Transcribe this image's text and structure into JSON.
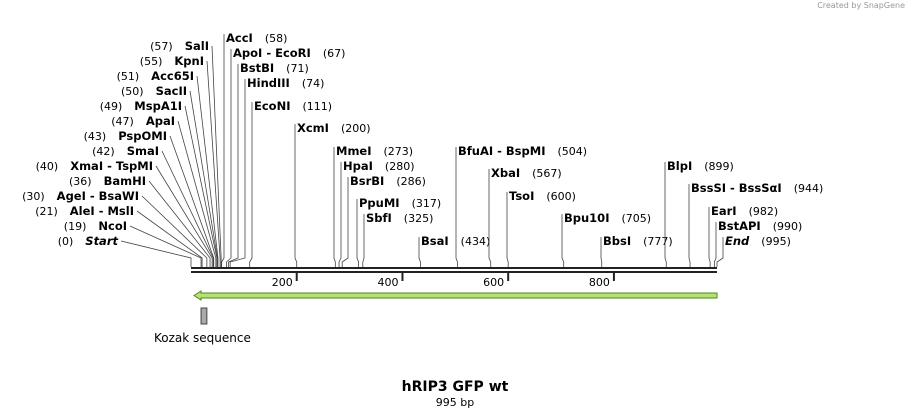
{
  "credit": "Created by SnapGene",
  "title": "hRIP3 GFP wt",
  "length_label": "995 bp",
  "length": 995,
  "ruler": [
    200,
    400,
    600,
    800
  ],
  "feature": {
    "label": "Kozak sequence",
    "start": 19,
    "end": 30
  },
  "sites": [
    {
      "name": "Start",
      "position": 0,
      "position_label": "(0)"
    },
    {
      "name": "NcoI",
      "position": 19,
      "position_label": "(19)"
    },
    {
      "name": "AleI - MslI",
      "position": 21,
      "position_label": "(21)"
    },
    {
      "name": "AgeI - BsaWI",
      "position": 30,
      "position_label": "(30)"
    },
    {
      "name": "BamHI",
      "position": 36,
      "position_label": "(36)"
    },
    {
      "name": "XmaI - TspMI",
      "position": 40,
      "position_label": "(40)"
    },
    {
      "name": "SmaI",
      "position": 42,
      "position_label": "(42)"
    },
    {
      "name": "PspOMI",
      "position": 43,
      "position_label": "(43)"
    },
    {
      "name": "ApaI",
      "position": 47,
      "position_label": "(47)"
    },
    {
      "name": "MspA1I",
      "position": 49,
      "position_label": "(49)"
    },
    {
      "name": "SacII",
      "position": 50,
      "position_label": "(50)"
    },
    {
      "name": "Acc65I",
      "position": 51,
      "position_label": "(51)"
    },
    {
      "name": "KpnI",
      "position": 55,
      "position_label": "(55)"
    },
    {
      "name": "SalI",
      "position": 57,
      "position_label": "(57)"
    },
    {
      "name": "AccI",
      "position": 58,
      "position_label": "(58)"
    },
    {
      "name": "ApoI - EcoRI",
      "position": 67,
      "position_label": "(67)"
    },
    {
      "name": "BstBI",
      "position": 71,
      "position_label": "(71)"
    },
    {
      "name": "HindIII",
      "position": 74,
      "position_label": "(74)"
    },
    {
      "name": "EcoNI",
      "position": 111,
      "position_label": "(111)"
    },
    {
      "name": "XcmI",
      "position": 200,
      "position_label": "(200)"
    },
    {
      "name": "MmeI",
      "position": 273,
      "position_label": "(273)"
    },
    {
      "name": "HpaI",
      "position": 280,
      "position_label": "(280)"
    },
    {
      "name": "BsrBI",
      "position": 286,
      "position_label": "(286)"
    },
    {
      "name": "PpuMI",
      "position": 317,
      "position_label": "(317)"
    },
    {
      "name": "SbfI",
      "position": 325,
      "position_label": "(325)"
    },
    {
      "name": "BsaI",
      "position": 434,
      "position_label": "(434)"
    },
    {
      "name": "BfuAI - BspMI",
      "position": 504,
      "position_label": "(504)"
    },
    {
      "name": "XbaI",
      "position": 567,
      "position_label": "(567)"
    },
    {
      "name": "TsoI",
      "position": 600,
      "position_label": "(600)"
    },
    {
      "name": "Bpu10I",
      "position": 705,
      "position_label": "(705)"
    },
    {
      "name": "BbsI",
      "position": 777,
      "position_label": "(777)"
    },
    {
      "name": "BlpI",
      "position": 899,
      "position_label": "(899)"
    },
    {
      "name": "BssSI - BssSαI",
      "position": 944,
      "position_label": "(944)"
    },
    {
      "name": "EarI",
      "position": 982,
      "position_label": "(982)"
    },
    {
      "name": "BstAPI",
      "position": 990,
      "position_label": "(990)"
    },
    {
      "name": "End",
      "position": 995,
      "position_label": "(995)"
    }
  ]
}
